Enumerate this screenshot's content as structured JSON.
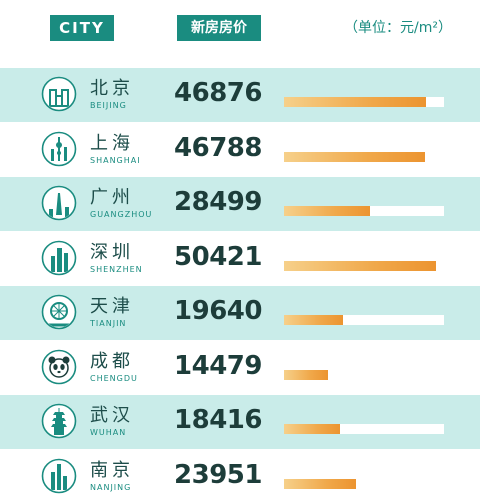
{
  "header": {
    "city_label": "CITY",
    "price_label": "新房房价",
    "unit": "（单位：元/m²）"
  },
  "colors": {
    "accent": "#1a8c80",
    "row_shade": "#c9ece9",
    "bar_start": "#f6d08a",
    "bar_end": "#ec9430"
  },
  "chart_data": {
    "type": "bar",
    "orientation": "horizontal",
    "xlim": [
      0,
      53000
    ],
    "categories": [
      "北京",
      "上海",
      "广州",
      "深圳",
      "天津",
      "成都",
      "武汉",
      "南京"
    ],
    "categories_en": [
      "BEIJING",
      "SHANGHAI",
      "GUANGZHOU",
      "SHENZHEN",
      "TIANJIN",
      "CHENGDU",
      "WUHAN",
      "NANJING"
    ],
    "values": [
      "46876",
      "46788",
      "28499",
      "50421",
      "19640",
      "14479",
      "18416",
      "23951"
    ],
    "icons": [
      "beijing-landmark-icon",
      "shanghai-tower-icon",
      "guangzhou-tower-icon",
      "shenzhen-skyline-icon",
      "tianjin-ferris-wheel-icon",
      "chengdu-panda-icon",
      "wuhan-pagoda-icon",
      "nanjing-skyline-icon"
    ]
  }
}
